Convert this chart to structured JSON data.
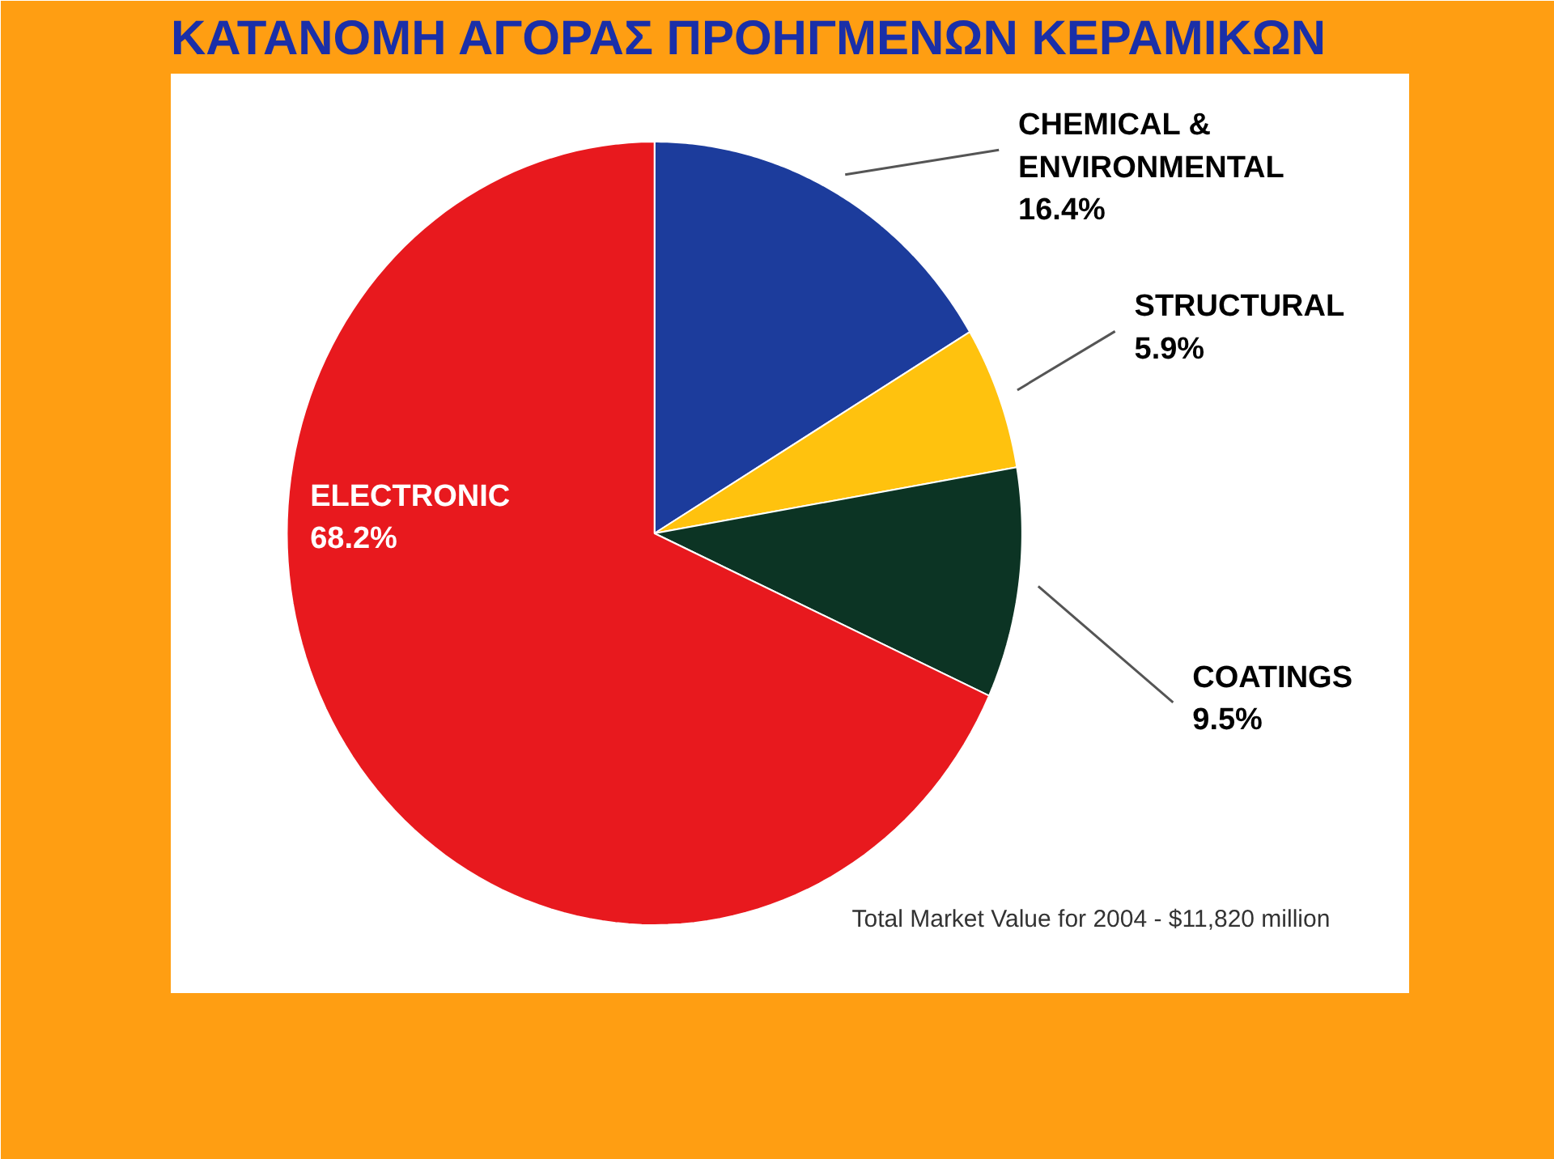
{
  "chart_data": {
    "type": "pie",
    "title": "ΚΑΤΑΝΟΜΗ ΑΓΟΡΑΣ ΠΡΟΗΓΜΕΝΩΝ ΚΕΡΑΜΙΚΩΝ",
    "categories": [
      "CHEMICAL & ENVIRONMENTAL",
      "STRUCTURAL",
      "COATINGS",
      "ELECTRONIC"
    ],
    "values": [
      16.4,
      5.9,
      9.5,
      68.2
    ],
    "colors": [
      "#1c3c9c",
      "#ffc20e",
      "#0c3424",
      "#e8191e"
    ],
    "value_labels": [
      "16.4%",
      "5.9%",
      "9.5%",
      "68.2%"
    ],
    "annotations": [
      "Total Market Value for 2004 - $11,820 million"
    ]
  }
}
